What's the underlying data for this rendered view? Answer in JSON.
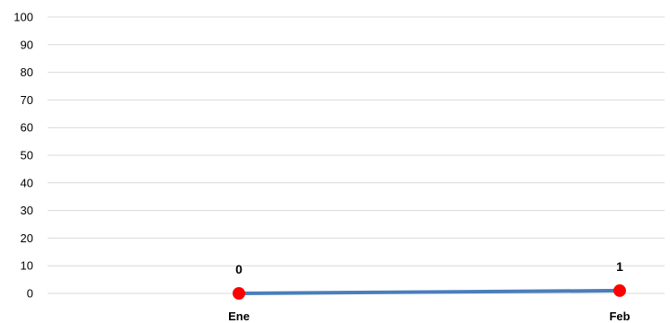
{
  "chart_data": {
    "type": "line",
    "categories": [
      "Ene",
      "Feb"
    ],
    "series": [
      {
        "values": [
          0,
          1
        ],
        "line_color": "#4a7ebb",
        "marker_color": "#ff0000"
      }
    ],
    "data_labels": [
      "0",
      "1"
    ],
    "ylim": [
      0,
      100
    ],
    "yticks": [
      "0",
      "10",
      "20",
      "30",
      "40",
      "50",
      "60",
      "70",
      "80",
      "90",
      "100"
    ],
    "grid": true,
    "grid_color": "#d9d9d9",
    "legend": "none"
  }
}
